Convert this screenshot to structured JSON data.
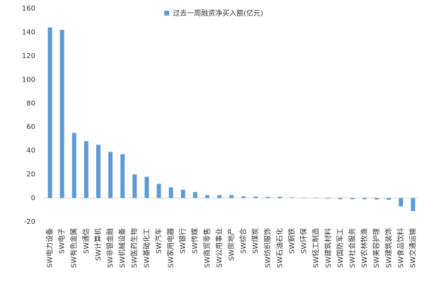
{
  "chart_data": {
    "type": "bar",
    "categories": [
      "SW电力设备",
      "SW电子",
      "SW有色金属",
      "SW通信",
      "SW计算机",
      "SW非银金融",
      "SW机械设备",
      "SW医药生物",
      "SW基础化工",
      "SW汽车",
      "SW家用电器",
      "SW银行",
      "SW传媒",
      "SW商贸零售",
      "SW公用事业",
      "SW房地产",
      "SW综合",
      "SW煤炭",
      "SW纺织服饰",
      "SW石油石化",
      "SW钢铁",
      "SW环保",
      "SW轻工制造",
      "SW建筑材料",
      "SW国防军工",
      "SW社会服务",
      "SW农林牧渔",
      "SW美容护理",
      "SW建筑装饰",
      "SW食品饮料",
      "SW交通运输"
    ],
    "series": [
      {
        "name": "过去一周融资净买入额(亿元)",
        "color": "#5b9bd5",
        "values": [
          144,
          142,
          55,
          48,
          45,
          39,
          37,
          20,
          18,
          12,
          9,
          7,
          5,
          2.5,
          2.5,
          2.5,
          1.5,
          1.2,
          1,
          1,
          0.5,
          0.3,
          0,
          -0.5,
          -1,
          -1,
          -1,
          -1.2,
          -1.5,
          -7,
          -11
        ]
      }
    ],
    "ylim": [
      -20,
      160
    ],
    "yticks": [
      -20,
      0,
      20,
      40,
      60,
      80,
      100,
      120,
      140,
      160
    ],
    "legend": "top"
  }
}
